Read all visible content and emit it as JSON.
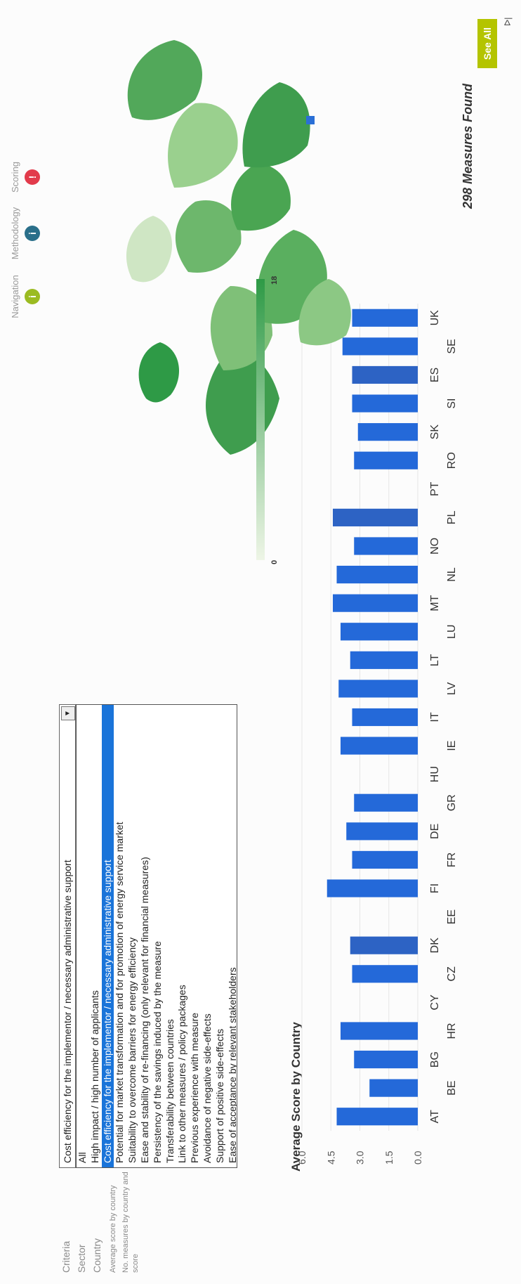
{
  "nav": {
    "criteria": "Criteria",
    "sector": "Sector",
    "country": "Country",
    "avg_score": "Average score by country",
    "no_measures": "No. measures by country and score"
  },
  "icons": [
    {
      "label": "Navigation",
      "icon": "info-icon",
      "color": "#9bbb22"
    },
    {
      "label": "Methodology",
      "icon": "info-icon",
      "color": "#2a6f8a"
    },
    {
      "label": "Scoring",
      "icon": "info-icon",
      "color": "#e23b4b"
    }
  ],
  "criteria": {
    "selected": "Cost efficiency for the implementor / necessary administrative support",
    "options": [
      "All",
      "High impact / high number of applicants",
      "Cost efficiency for the implementor / necessary administrative support",
      "Potential for market transformation and for promotion of energy service market",
      "Suitability to overcome barriers for energy efficiency",
      "Ease and stability of re-financing (only relevant for financial measures)",
      "Persistency of the savings induced by the measure",
      "Transferability between countries",
      "Link to other measures / policy packages",
      "Previous experience with measure",
      "Avoidance of negative side-effects",
      "Support of positive side-effects",
      "Ease of acceptance by relevant stakeholders"
    ],
    "selected_index": 2
  },
  "chart_data": {
    "type": "bar",
    "title": "Average Score by Country",
    "categories": [
      "AT",
      "BE",
      "BG",
      "HR",
      "CY",
      "CZ",
      "DK",
      "EE",
      "FI",
      "FR",
      "DE",
      "GR",
      "HU",
      "IE",
      "IT",
      "LV",
      "LT",
      "LU",
      "MT",
      "NL",
      "NO",
      "PL",
      "PT",
      "RO",
      "SK",
      "SI",
      "ES",
      "SE",
      "UK"
    ],
    "values": [
      4.2,
      2.5,
      3.3,
      4.0,
      0.0,
      3.4,
      3.5,
      0.0,
      4.7,
      3.4,
      3.7,
      3.3,
      0.0,
      4.0,
      3.4,
      4.1,
      3.5,
      4.0,
      4.4,
      4.2,
      3.3,
      4.4,
      0.0,
      3.3,
      3.1,
      3.4,
      3.4,
      3.9,
      3.4
    ],
    "highlight": [
      "DK",
      "PL",
      "ES"
    ],
    "yticks": [
      "0.0",
      "1.5",
      "3.0",
      "4.5",
      "6.0"
    ],
    "ylim": [
      0,
      6
    ],
    "colors": {
      "bar": "#2469d9",
      "highlight": "#2d63c4",
      "grid": "#e6e6e6"
    }
  },
  "map": {
    "measures_found": "298 Measures Found",
    "see_all": "See All",
    "scale_min": "0",
    "scale_max": "18",
    "color_low": "#eef5e6",
    "color_high": "#2e9a46"
  },
  "corner_mark": "ᐅ|"
}
